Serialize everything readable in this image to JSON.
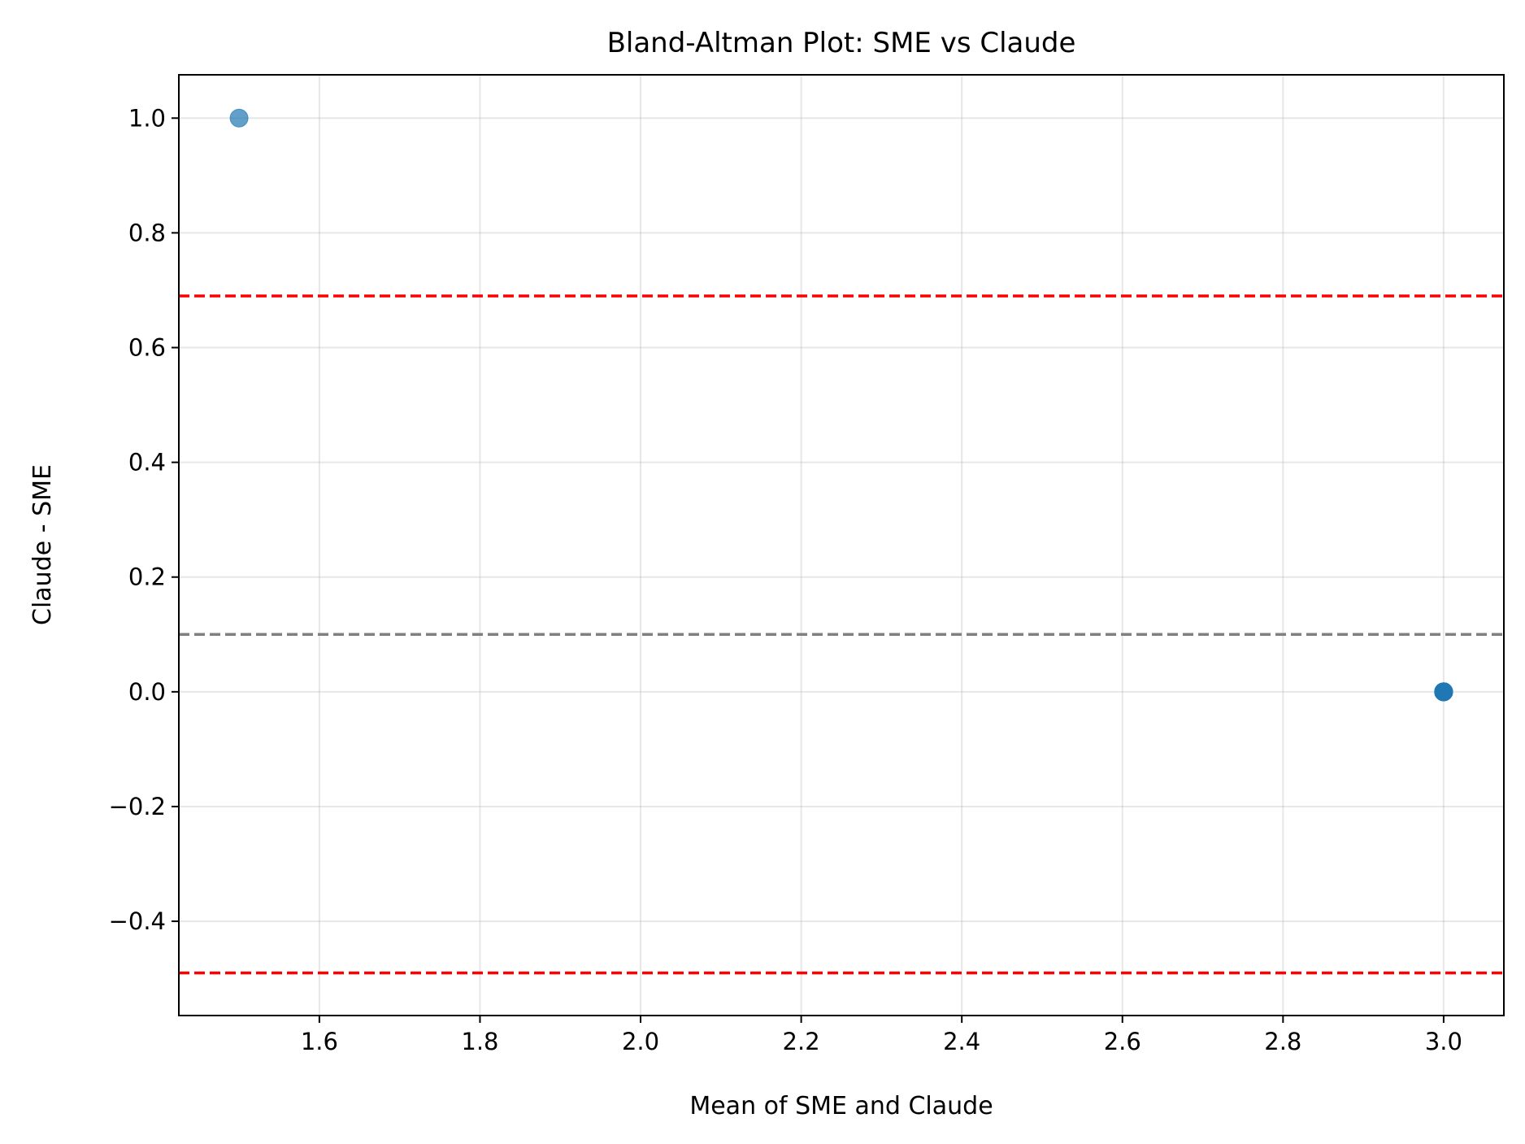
{
  "chart_data": {
    "type": "scatter",
    "title": "Bland-Altman Plot: SME vs Claude",
    "xlabel": "Mean of SME and Claude",
    "ylabel": "Claude - SME",
    "xlim": [
      1.425,
      3.075
    ],
    "ylim": [
      -0.5643,
      1.0755
    ],
    "xticks": [
      1.6,
      1.8,
      2.0,
      2.2,
      2.4,
      2.6,
      2.8,
      3.0
    ],
    "xtick_labels": [
      "1.6",
      "1.8",
      "2.0",
      "2.2",
      "2.4",
      "2.6",
      "2.8",
      "3.0"
    ],
    "yticks": [
      -0.4,
      -0.2,
      0.0,
      0.2,
      0.4,
      0.6,
      0.8,
      1.0
    ],
    "ytick_labels": [
      "−0.4",
      "−0.2",
      "0.0",
      "0.2",
      "0.4",
      "0.6",
      "0.8",
      "1.0"
    ],
    "grid": true,
    "points": [
      {
        "x": 1.5,
        "y": 1.0
      },
      {
        "x": 3.0,
        "y": 0.0
      },
      {
        "x": 3.0,
        "y": 0.0
      },
      {
        "x": 3.0,
        "y": 0.0
      },
      {
        "x": 3.0,
        "y": 0.0
      },
      {
        "x": 3.0,
        "y": 0.0
      },
      {
        "x": 3.0,
        "y": 0.0
      },
      {
        "x": 3.0,
        "y": 0.0
      },
      {
        "x": 3.0,
        "y": 0.0
      },
      {
        "x": 3.0,
        "y": 0.0
      }
    ],
    "point_color": "#1f77b4",
    "reference_lines": [
      {
        "kind": "mean_difference",
        "y": 0.1,
        "color": "#808080",
        "style": "dashed"
      },
      {
        "kind": "upper_limit_of_agreement",
        "y": 0.69,
        "color": "#ff0000",
        "style": "dashed"
      },
      {
        "kind": "lower_limit_of_agreement",
        "y": -0.49,
        "color": "#ff0000",
        "style": "dashed"
      }
    ]
  }
}
